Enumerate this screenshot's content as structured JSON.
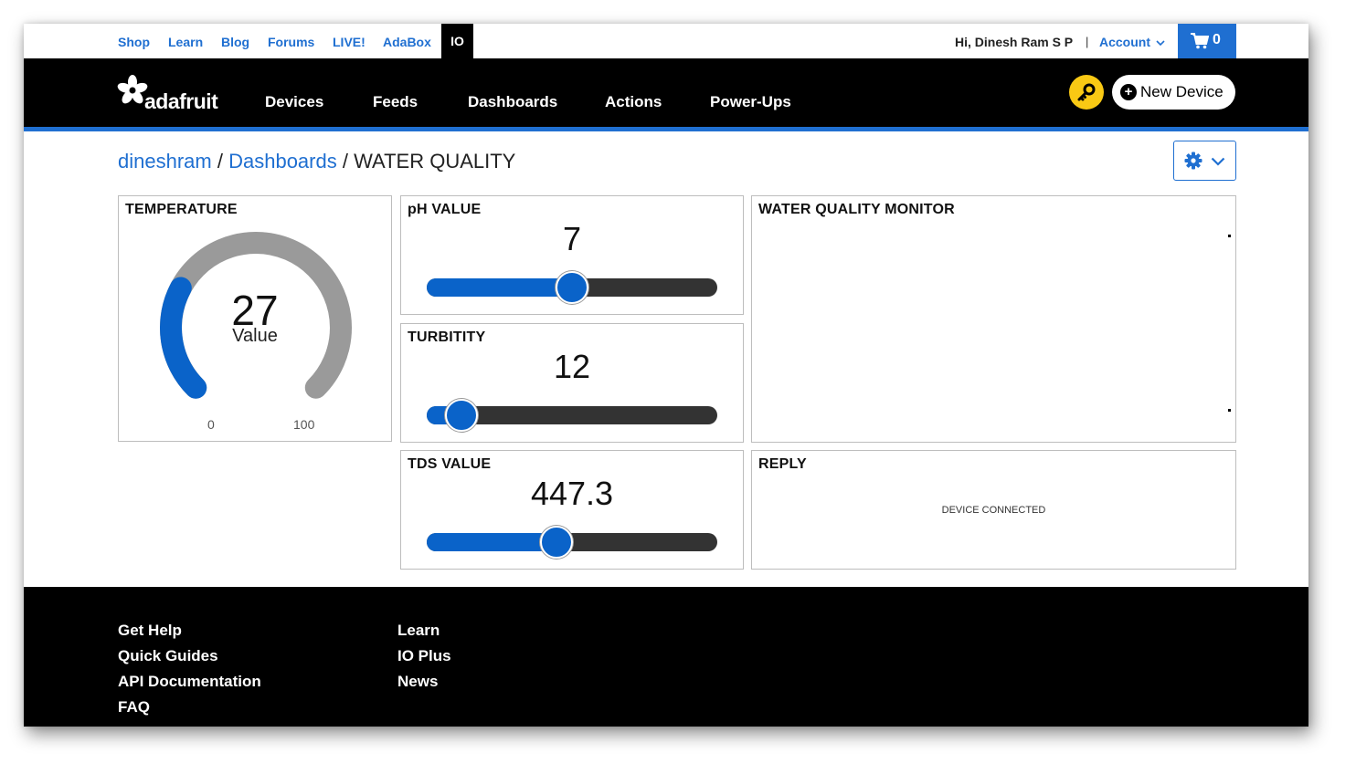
{
  "topbar": {
    "links": [
      "Shop",
      "Learn",
      "Blog",
      "Forums",
      "LIVE!",
      "AdaBox"
    ],
    "active_tab": "IO",
    "greeting": "Hi, Dinesh Ram S P",
    "separator": "|",
    "account_label": "Account",
    "cart_count": "0"
  },
  "nav": {
    "logo_text": "adafruit",
    "items": [
      "Devices",
      "Feeds",
      "Dashboards",
      "Actions",
      "Power-Ups"
    ],
    "new_device_label": "New Device"
  },
  "breadcrumb": {
    "user": "dineshram",
    "section": "Dashboards",
    "page": "WATER QUALITY",
    "sep": "/"
  },
  "blocks": {
    "temperature": {
      "title": "TEMPERATURE",
      "value": "27",
      "label": "Value",
      "min": "0",
      "max": "100",
      "fraction": 0.27
    },
    "ph": {
      "title": "pH VALUE",
      "value": "7",
      "fraction": 0.5
    },
    "turbidity": {
      "title": "TURBITITY",
      "value": "12",
      "fraction": 0.12
    },
    "tds": {
      "title": "TDS VALUE",
      "value": "447.3",
      "fraction": 0.447
    },
    "monitor": {
      "title": "WATER QUALITY MONITOR"
    },
    "reply": {
      "title": "REPLY",
      "text": "DEVICE CONNECTED"
    }
  },
  "footer": {
    "col1": [
      "Get Help",
      "Quick Guides",
      "API Documentation",
      "FAQ"
    ],
    "col2": [
      "Learn",
      "IO Plus",
      "News"
    ]
  },
  "colors": {
    "accent": "#1f6fd1",
    "slider": "#0a63c9",
    "key": "#f9c914",
    "gauge_track": "#9a9a9a"
  }
}
